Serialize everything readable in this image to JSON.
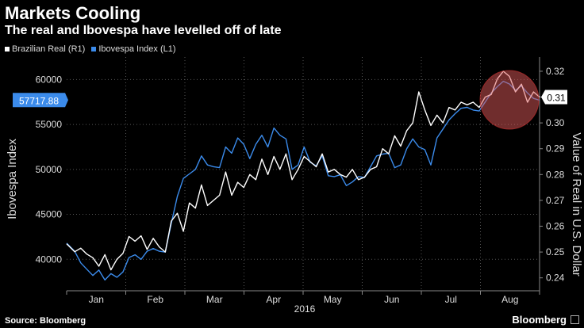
{
  "header": {
    "title": "Markets Cooling",
    "subtitle": "The real and Ibovespa have levelled off of late"
  },
  "footer": {
    "source": "Source: Bloomberg",
    "brand": "Bloomberg"
  },
  "colors": {
    "real": "#ffffff",
    "ibovespa": "#3b8beb",
    "highlight": "#e05a5a",
    "grid": "#555555"
  },
  "chart_data": {
    "type": "line",
    "title": "Markets Cooling",
    "subtitle": "The real and Ibovespa have levelled off of late",
    "xlabel": "2016",
    "x_ticks": [
      "Jan",
      "Feb",
      "Mar",
      "Apr",
      "May",
      "Jun",
      "Jul",
      "Aug"
    ],
    "left_axis": {
      "label": "Ibovespa Index",
      "range": [
        36500,
        62500
      ],
      "ticks": [
        "40000",
        "45000",
        "50000",
        "55000",
        "60000"
      ],
      "tick_values": [
        40000,
        45000,
        50000,
        55000,
        60000
      ]
    },
    "right_axis": {
      "label": "Value of Real in U.S. Dollar",
      "range": [
        0.235,
        0.3255
      ],
      "ticks": [
        "0.24",
        "0.25",
        "0.26",
        "0.27",
        "0.28",
        "0.29",
        "0.30",
        "0.31",
        "0.32"
      ],
      "tick_values": [
        0.24,
        0.25,
        0.26,
        0.27,
        0.28,
        0.29,
        0.3,
        0.31,
        0.32
      ]
    },
    "last_values": {
      "ibovespa": "57717.88",
      "real": "0.31"
    },
    "series": [
      {
        "name": "Brazilian Real (R1)",
        "axis": "right",
        "color": "#ffffff",
        "x": [
          0,
          4,
          7,
          10,
          13,
          16,
          19,
          22,
          25,
          28,
          31,
          34,
          37,
          40,
          43,
          46,
          49,
          52,
          55,
          58,
          61,
          64,
          67,
          70,
          73,
          76,
          79,
          82,
          85,
          88,
          91,
          94,
          97,
          100,
          103,
          106,
          109,
          112,
          115,
          118,
          121,
          124,
          127,
          130,
          133,
          136,
          139,
          142,
          145,
          148,
          151,
          154,
          157,
          160,
          163,
          166,
          169,
          172,
          175,
          178,
          181,
          184,
          187,
          190,
          193,
          196,
          199,
          202,
          205,
          208,
          211,
          214,
          217,
          220,
          223,
          226,
          229,
          232,
          235
        ],
        "values": [
          0.2532,
          0.2501,
          0.2515,
          0.2492,
          0.2478,
          0.2445,
          0.249,
          0.2431,
          0.2472,
          0.2495,
          0.256,
          0.2542,
          0.2563,
          0.251,
          0.2553,
          0.252,
          0.25,
          0.262,
          0.265,
          0.258,
          0.269,
          0.267,
          0.276,
          0.268,
          0.27,
          0.272,
          0.281,
          0.272,
          0.277,
          0.275,
          0.28,
          0.278,
          0.286,
          0.28,
          0.287,
          0.282,
          0.288,
          0.278,
          0.282,
          0.287,
          0.285,
          0.283,
          0.288,
          0.281,
          0.282,
          0.28,
          0.279,
          0.282,
          0.278,
          0.279,
          0.282,
          0.283,
          0.29,
          0.288,
          0.295,
          0.291,
          0.297,
          0.3,
          0.312,
          0.305,
          0.299,
          0.303,
          0.3,
          0.306,
          0.305,
          0.308,
          0.307,
          0.308,
          0.306,
          0.31,
          0.311,
          0.317,
          0.32,
          0.318,
          0.312,
          0.315,
          0.308,
          0.312,
          0.31
        ]
      },
      {
        "name": "Ibovespa Index (L1)",
        "axis": "left",
        "color": "#3b8beb",
        "x": [
          0,
          4,
          7,
          10,
          13,
          16,
          19,
          22,
          25,
          28,
          31,
          34,
          37,
          40,
          43,
          46,
          49,
          52,
          55,
          58,
          61,
          64,
          67,
          70,
          73,
          76,
          79,
          82,
          85,
          88,
          91,
          94,
          97,
          100,
          103,
          106,
          109,
          112,
          115,
          118,
          121,
          124,
          127,
          130,
          133,
          136,
          139,
          142,
          145,
          148,
          151,
          154,
          157,
          160,
          163,
          166,
          169,
          172,
          175,
          178,
          181,
          184,
          187,
          190,
          193,
          196,
          199,
          202,
          205,
          208,
          211,
          214,
          217,
          220,
          223,
          226,
          229,
          232,
          235
        ],
        "values": [
          41800,
          40900,
          39600,
          38900,
          38200,
          38800,
          37700,
          38400,
          38000,
          38600,
          40200,
          40500,
          40000,
          40900,
          41200,
          40900,
          40800,
          44000,
          47000,
          49000,
          49500,
          50000,
          51500,
          50500,
          50300,
          50200,
          52500,
          51800,
          53500,
          52800,
          51200,
          52800,
          53800,
          52500,
          54600,
          53800,
          53400,
          50000,
          50500,
          52500,
          50800,
          50400,
          51500,
          49300,
          49200,
          49400,
          48200,
          48600,
          49200,
          49100,
          50300,
          51500,
          51700,
          51800,
          50200,
          50500,
          52300,
          53400,
          52500,
          52200,
          50500,
          53500,
          54500,
          55500,
          56200,
          56800,
          56900,
          56600,
          56500,
          57500,
          58500,
          59200,
          59800,
          59500,
          58800,
          59300,
          58500,
          57900,
          57700
        ]
      }
    ]
  }
}
